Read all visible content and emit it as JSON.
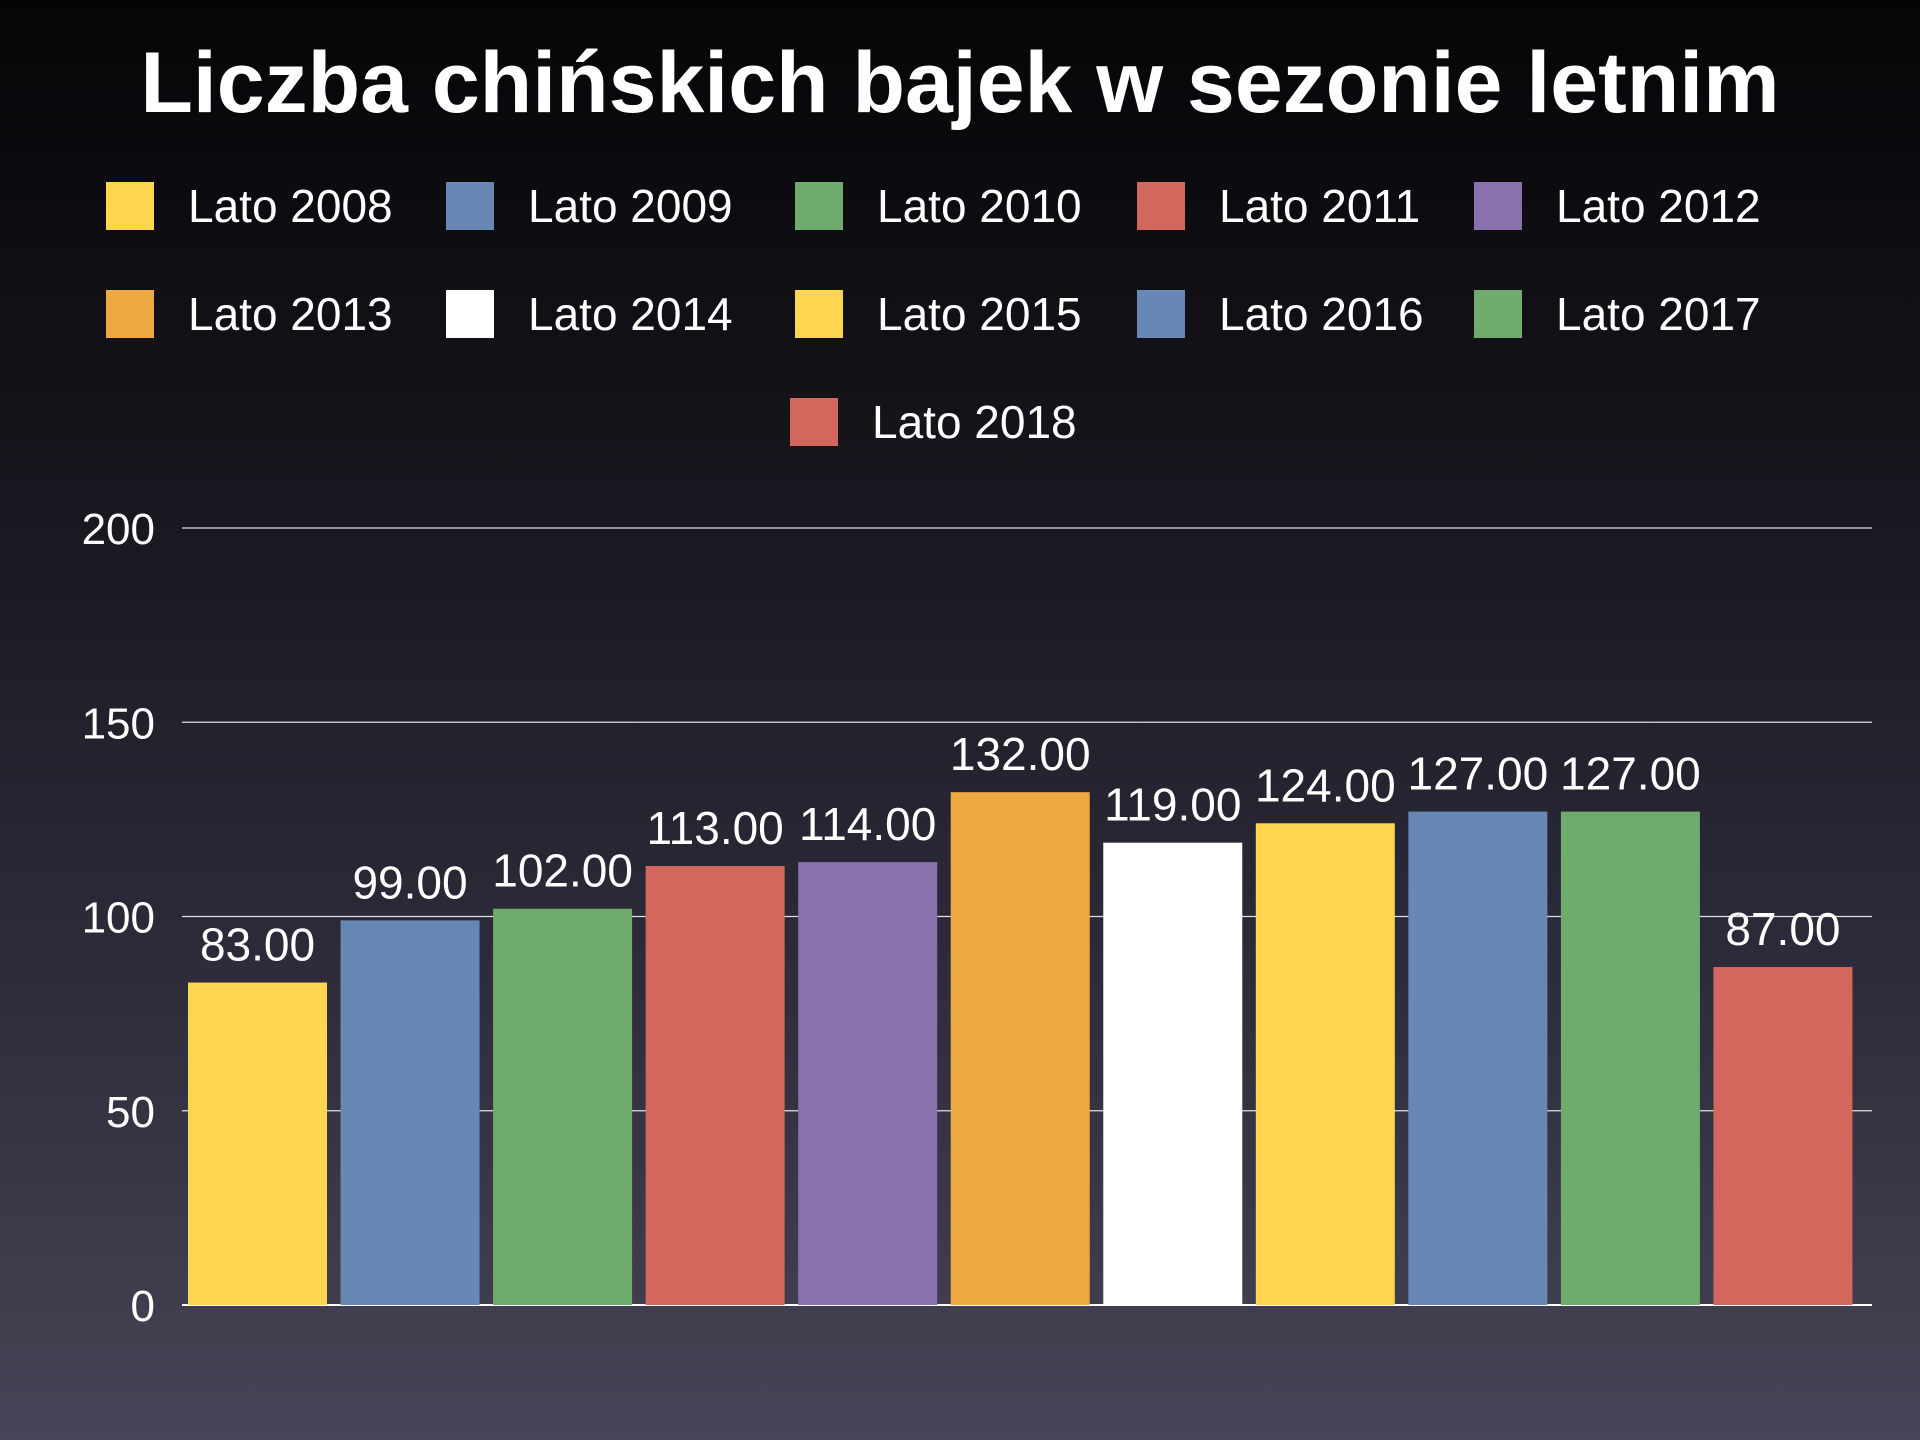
{
  "chart_data": {
    "type": "bar",
    "title": "Liczba chińskich bajek w sezonie letnim",
    "xlabel": "",
    "ylabel": "",
    "ylim": [
      0,
      200
    ],
    "yticks": [
      "0",
      "50",
      "100",
      "150",
      "200"
    ],
    "grid": true,
    "legend_position": "top",
    "series": [
      {
        "name": "Lato 2008",
        "value": 83,
        "label": "83.00",
        "color": "#fdd54e"
      },
      {
        "name": "Lato 2009",
        "value": 99,
        "label": "99.00",
        "color": "#6788b5"
      },
      {
        "name": "Lato 2010",
        "value": 102,
        "label": "102.00",
        "color": "#6fab6c"
      },
      {
        "name": "Lato 2011",
        "value": 113,
        "label": "113.00",
        "color": "#d2675d"
      },
      {
        "name": "Lato 2012",
        "value": 114,
        "label": "114.00",
        "color": "#8b70ae"
      },
      {
        "name": "Lato 2013",
        "value": 132,
        "label": "132.00",
        "color": "#eea943"
      },
      {
        "name": "Lato 2014",
        "value": 119,
        "label": "119.00",
        "color": "#ffffff"
      },
      {
        "name": "Lato 2015",
        "value": 124,
        "label": "124.00",
        "color": "#fdd54e"
      },
      {
        "name": "Lato 2016",
        "value": 127,
        "label": "127.00",
        "color": "#6788b5"
      },
      {
        "name": "Lato 2017",
        "value": 127,
        "label": "127.00",
        "color": "#6fab6c"
      },
      {
        "name": "Lato 2018",
        "value": 87,
        "label": "87.00",
        "color": "#d2675d"
      }
    ]
  }
}
